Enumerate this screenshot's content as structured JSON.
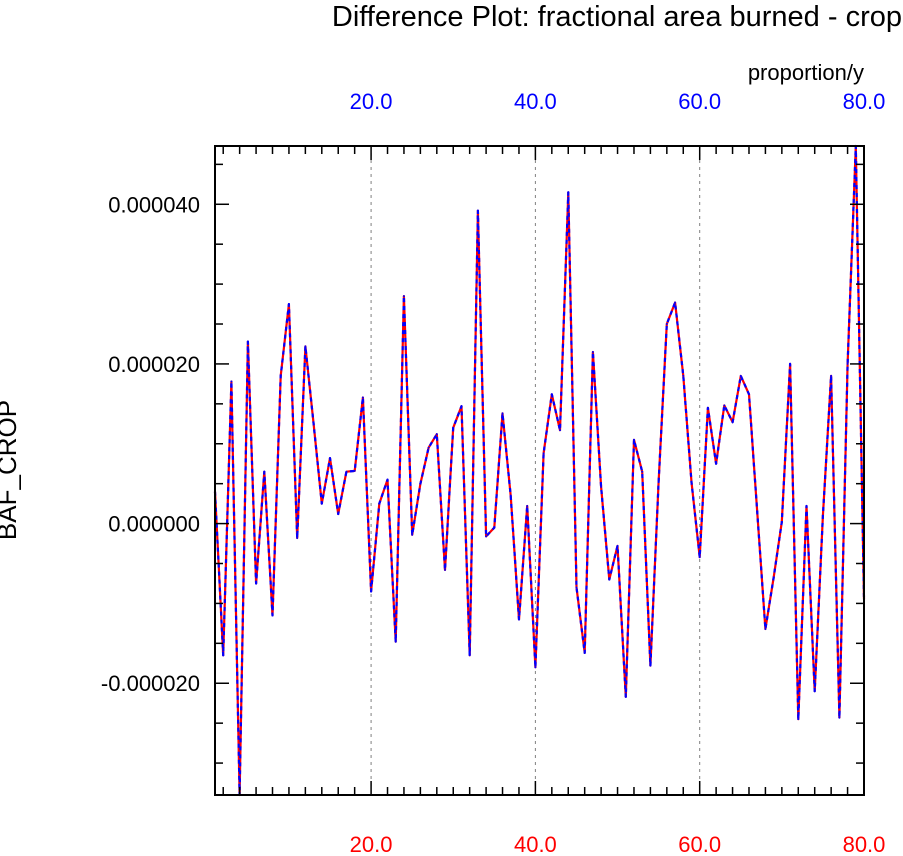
{
  "chart_data": {
    "type": "line",
    "title": "Difference Plot: fractional area burned - crop",
    "units_label": "proportion/y",
    "ylabel": "BAF_CROP",
    "xlabel": "",
    "xlim": [
      1,
      80
    ],
    "ylim": [
      -3.4e-05,
      4.73e-05
    ],
    "x_ticks": [
      20,
      40,
      60,
      80
    ],
    "x_tick_labels": [
      "20.0",
      "40.0",
      "60.0",
      "80.0"
    ],
    "y_ticks": [
      4e-05,
      2e-05,
      0.0,
      -2e-05
    ],
    "y_tick_labels": [
      "0.000040",
      "0.000020",
      "0.000000",
      "-0.000020"
    ],
    "grid": "vertical-dashed",
    "colors": {
      "top_axis": "#0000ff",
      "bottom_axis": "#ff0000",
      "series_a": "#ff0000",
      "series_b": "#0000ff",
      "grid": "#808080"
    },
    "series": [
      {
        "style": "dashed-overlay",
        "x": [
          1,
          2,
          3,
          4,
          5,
          6,
          7,
          8,
          9,
          10,
          11,
          12,
          13,
          14,
          15,
          16,
          17,
          18,
          19,
          20,
          21,
          22,
          23,
          24,
          25,
          26,
          27,
          28,
          29,
          30,
          31,
          32,
          33,
          34,
          35,
          36,
          37,
          38,
          39,
          40,
          41,
          42,
          43,
          44,
          45,
          46,
          47,
          48,
          49,
          50,
          51,
          52,
          53,
          54,
          55,
          56,
          57,
          58,
          59,
          60,
          61,
          62,
          63,
          64,
          65,
          66,
          67,
          68,
          69,
          70,
          71,
          72,
          73,
          74,
          75,
          76,
          77,
          78,
          79,
          80
        ],
        "values": [
          4e-06,
          -1.65e-05,
          1.78e-05,
          -3.4e-05,
          2.28e-05,
          -7.5e-06,
          6.5e-06,
          -1.15e-05,
          1.85e-05,
          2.75e-05,
          -1.8e-06,
          2.22e-05,
          1.25e-05,
          2.5e-06,
          8.2e-06,
          1.2e-06,
          6.5e-06,
          6.6e-06,
          1.58e-05,
          -8.5e-06,
          2.5e-06,
          5.5e-06,
          -1.48e-05,
          2.85e-05,
          -1.4e-06,
          5e-06,
          9.5e-06,
          1.12e-05,
          -5.8e-06,
          1.2e-05,
          1.47e-05,
          -1.65e-05,
          3.92e-05,
          -1.6e-06,
          -5e-07,
          1.38e-05,
          3.5e-06,
          -1.2e-05,
          2.2e-06,
          -1.8e-05,
          8.8e-06,
          1.62e-05,
          1.17e-05,
          4.15e-05,
          -8e-06,
          -1.62e-05,
          2.15e-05,
          4.6e-06,
          -7e-06,
          -2.8e-06,
          -2.17e-05,
          1.05e-05,
          6.5e-06,
          -1.78e-05,
          5.2e-06,
          2.5e-05,
          2.77e-05,
          1.85e-05,
          5.2e-06,
          -4.2e-06,
          1.45e-05,
          7.5e-06,
          1.48e-05,
          1.27e-05,
          1.85e-05,
          1.62e-05,
          1.5e-06,
          -1.32e-05,
          -6.8e-06,
          2e-07,
          2e-05,
          -2.45e-05,
          2.2e-06,
          -2.1e-05,
          1e-06,
          1.85e-05,
          -2.43e-05,
          2e-05,
          4.73e-05,
          -9.5e-06
        ]
      }
    ]
  }
}
